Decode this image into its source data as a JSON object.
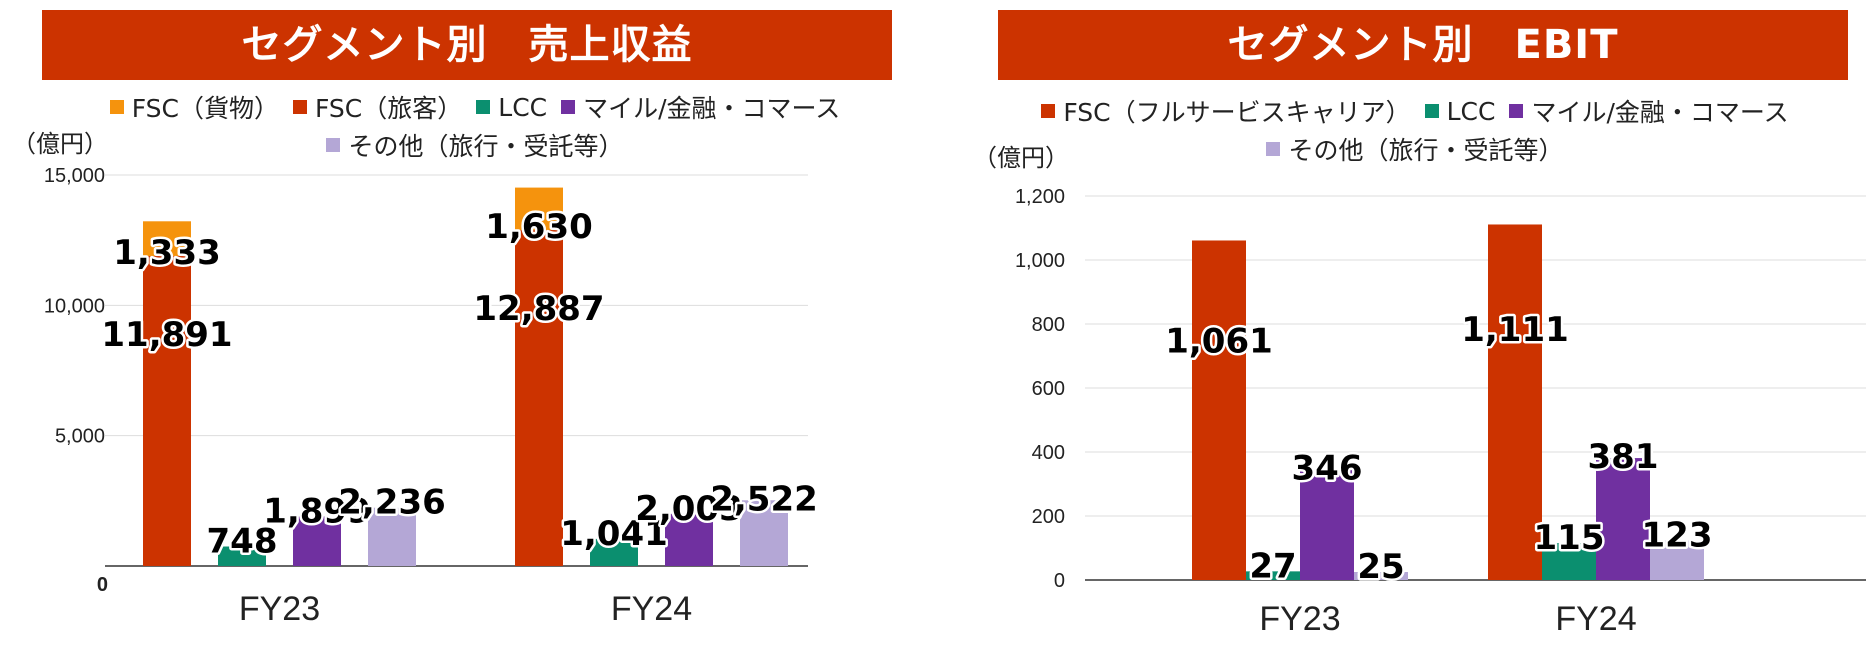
{
  "chart_data": [
    {
      "type": "bar",
      "title": "セグメント別　売上収益",
      "unit_label": "（億円）",
      "categories": [
        "FY23",
        "FY24"
      ],
      "ylim": [
        0,
        15000
      ],
      "yticks": [
        0,
        5000,
        10000,
        15000
      ],
      "ytick_labels": [
        "0",
        "5,000",
        "10,000",
        "15,000"
      ],
      "grid": true,
      "legend_position": "top",
      "legend_rows": [
        [
          0,
          1,
          2,
          3
        ],
        [
          4
        ]
      ],
      "series": [
        {
          "name": "FSC（貨物）",
          "color": "#f5930d",
          "values": [
            1333,
            1630
          ],
          "labels": [
            "1,333",
            "1,630"
          ],
          "stacked_on": 1,
          "group": 0
        },
        {
          "name": "FSC（旅客）",
          "color": "#cc3300",
          "values": [
            11891,
            12887
          ],
          "labels": [
            "11,891",
            "12,887"
          ],
          "group": 0
        },
        {
          "name": "LCC",
          "color": "#0b8f6f",
          "values": [
            748,
            1041
          ],
          "labels": [
            "748",
            "1,041"
          ],
          "group": 1
        },
        {
          "name": "マイル/金融・コマース",
          "color": "#7030a0",
          "values": [
            1899,
            2003
          ],
          "labels": [
            "1,899",
            "2,003"
          ],
          "group": 2
        },
        {
          "name": "その他（旅行・受託等）",
          "color": "#b4a7d6",
          "values": [
            2236,
            2522
          ],
          "labels": [
            "2,236",
            "2,522"
          ],
          "group": 3
        }
      ]
    },
    {
      "type": "bar",
      "title": "セグメント別　EBIT",
      "unit_label": "（億円）",
      "categories": [
        "FY23",
        "FY24"
      ],
      "ylim": [
        0,
        1200
      ],
      "yticks": [
        0,
        200,
        400,
        600,
        800,
        1000,
        1200
      ],
      "ytick_labels": [
        "0",
        "200",
        "400",
        "600",
        "800",
        "1,000",
        "1,200"
      ],
      "grid": true,
      "legend_position": "top",
      "legend_rows": [
        [
          0,
          1,
          2
        ],
        [
          3
        ]
      ],
      "series": [
        {
          "name": "FSC（フルサービスキャリア）",
          "color": "#cc3300",
          "values": [
            1061,
            1111
          ],
          "labels": [
            "1,061",
            "1,111"
          ],
          "group": 0
        },
        {
          "name": "LCC",
          "color": "#0b8f6f",
          "values": [
            27,
            115
          ],
          "labels": [
            "27",
            "115"
          ],
          "group": 1
        },
        {
          "name": "マイル/金融・コマース",
          "color": "#7030a0",
          "values": [
            346,
            381
          ],
          "labels": [
            "346",
            "381"
          ],
          "group": 2
        },
        {
          "name": "その他（旅行・受託等）",
          "color": "#b4a7d6",
          "values": [
            25,
            123
          ],
          "labels": [
            "25",
            "123"
          ],
          "group": 3
        }
      ]
    }
  ]
}
